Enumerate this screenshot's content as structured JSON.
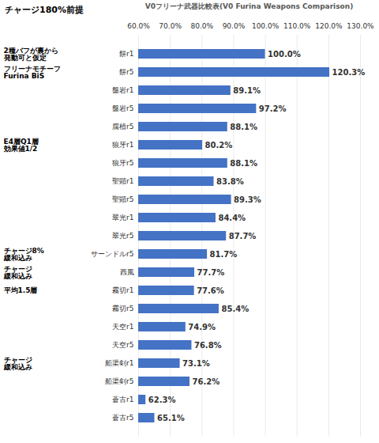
{
  "chart_data": {
    "type": "bar",
    "orientation": "horizontal",
    "title": "V0フリーナ武器比較表(V0 Furina Weapons Comparison)",
    "subtitle": "チャージ180%前提",
    "categories": [
      "餅r1",
      "餅r5",
      "盤岩r1",
      "盤岩r5",
      "腐植r5",
      "狼牙r1",
      "狼牙r5",
      "聖顕r1",
      "聖顕r5",
      "翠光r1",
      "翠光r5",
      "サーンドルr5",
      "西風",
      "霧切r1",
      "霧切r5",
      "天空r1",
      "天空r5",
      "船渠剣r1",
      "船渠剣r5",
      "蒼古r1",
      "蒼古r5"
    ],
    "values": [
      100.0,
      120.3,
      89.1,
      97.2,
      88.1,
      80.2,
      88.1,
      83.8,
      89.3,
      84.4,
      87.7,
      81.7,
      77.7,
      77.6,
      85.4,
      74.9,
      76.8,
      73.1,
      76.2,
      62.3,
      65.1
    ],
    "value_labels": [
      "100.0%",
      "120.3%",
      "89.1%",
      "97.2%",
      "88.1%",
      "80.2%",
      "88.1%",
      "83.8%",
      "89.3%",
      "84.4%",
      "87.7%",
      "81.7%",
      "77.7%",
      "77.6%",
      "85.4%",
      "74.9%",
      "76.8%",
      "73.1%",
      "76.2%",
      "62.3%",
      "65.1%"
    ],
    "color": "#4472c4",
    "xlim": [
      60,
      130
    ],
    "xticks": [
      {
        "value": 60,
        "label": "60.0%"
      },
      {
        "value": 70,
        "label": "70.0%"
      },
      {
        "value": 80,
        "label": "80.0%"
      },
      {
        "value": 90,
        "label": "90.0%"
      },
      {
        "value": 100,
        "label": "100.0%"
      },
      {
        "value": 110,
        "label": "110.0%"
      },
      {
        "value": 120,
        "label": "120.0%"
      },
      {
        "value": 130,
        "label": "130.0%"
      }
    ],
    "grid": true,
    "data_labels": true,
    "annotations": [
      {
        "text": "2種バフが裏から\n発動可と仮定",
        "category": "餅r1"
      },
      {
        "text": "フリーナモチーフ\nFurina BiS",
        "category": "餅r5"
      },
      {
        "text": "E4層Q1層\n効果値1/2",
        "category": "狼牙r1"
      },
      {
        "text": "チャージ8%\n緩和込み",
        "category": "サーンドルr5"
      },
      {
        "text": "チャージ\n緩和込み",
        "category": "西風"
      },
      {
        "text": "平均1.5層",
        "category": "霧切r1"
      },
      {
        "text": "チャージ\n緩和込み",
        "category": "船渠剣r1"
      }
    ]
  }
}
